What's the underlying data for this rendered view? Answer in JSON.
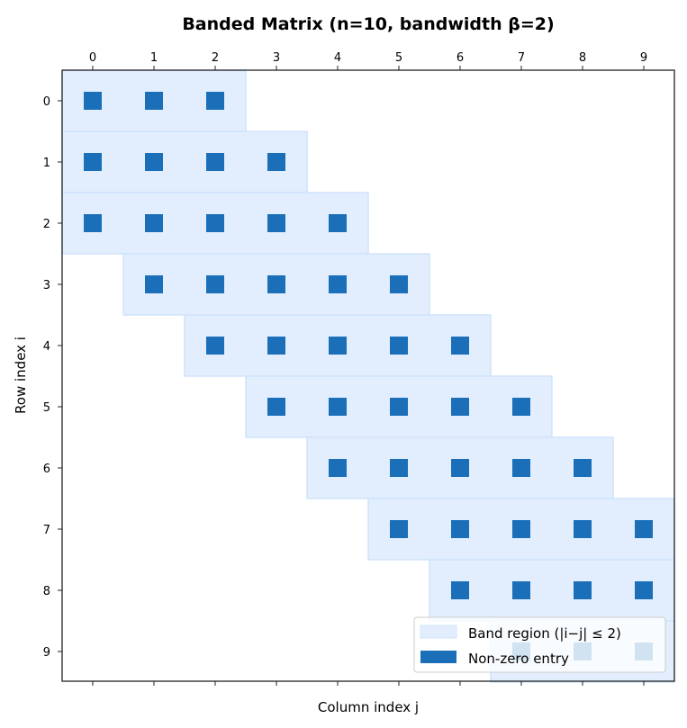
{
  "chart_data": {
    "type": "heatmap",
    "title": "Banded Matrix  (n=10, bandwidth β=2)",
    "xlabel": "Column index j",
    "ylabel": "Row index i",
    "n": 10,
    "bandwidth": 2,
    "xticks": [
      "0",
      "1",
      "2",
      "3",
      "4",
      "5",
      "6",
      "7",
      "8",
      "9"
    ],
    "yticks": [
      "0",
      "1",
      "2",
      "3",
      "4",
      "5",
      "6",
      "7",
      "8",
      "9"
    ],
    "xlim": [
      -0.5,
      9.5
    ],
    "ylim": [
      9.5,
      -0.5
    ],
    "x_tick_position": "top",
    "grid": false,
    "legend_position": "lower-right",
    "legend": [
      {
        "label": "Band region (|i−j| ≤ 2)",
        "color": "#e2eefd"
      },
      {
        "label": "Non-zero entry",
        "color": "#1a6fb8"
      }
    ],
    "band_rows": [
      {
        "row": 0,
        "col_start": 0,
        "col_end": 2
      },
      {
        "row": 1,
        "col_start": 0,
        "col_end": 3
      },
      {
        "row": 2,
        "col_start": 0,
        "col_end": 4
      },
      {
        "row": 3,
        "col_start": 1,
        "col_end": 5
      },
      {
        "row": 4,
        "col_start": 2,
        "col_end": 6
      },
      {
        "row": 5,
        "col_start": 3,
        "col_end": 7
      },
      {
        "row": 6,
        "col_start": 4,
        "col_end": 8
      },
      {
        "row": 7,
        "col_start": 5,
        "col_end": 9
      },
      {
        "row": 8,
        "col_start": 6,
        "col_end": 9
      },
      {
        "row": 9,
        "col_start": 7,
        "col_end": 9
      }
    ],
    "colors": {
      "band": "#e2eefd",
      "band_edge": "#d0e4fb",
      "entry": "#1a6fb8"
    }
  }
}
